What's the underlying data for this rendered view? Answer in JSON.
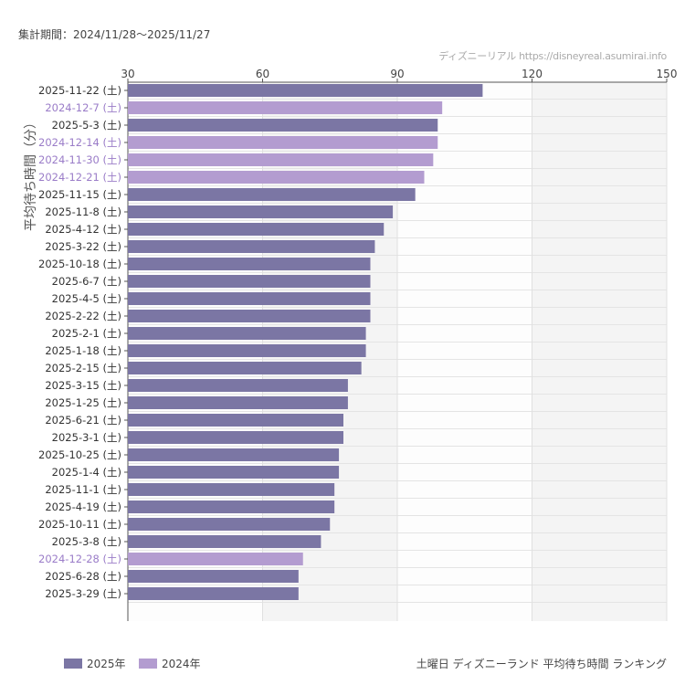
{
  "period_label": "集計期間：2024/11/28〜2025/11/27",
  "credit": "ディズニーリアル https://disneyreal.asumirai.info",
  "footer_title": "土曜日 ディズニーランド 平均待ち時間 ランキング",
  "chart_data": {
    "type": "bar",
    "orientation": "horizontal",
    "ylabel": "平均待ち時間（分）",
    "xlim": [
      30,
      150
    ],
    "xticks": [
      30,
      60,
      90,
      120,
      150
    ],
    "grid": true,
    "legend_position": "bottom-left",
    "colors": {
      "2025年": "#7b76a4",
      "2024年": "#b39cd0"
    },
    "label_colors": {
      "2025年": "#333333",
      "2024年": "#9a7cc8"
    },
    "legend": [
      "2025年",
      "2024年"
    ],
    "categories": [
      "2025-11-22 (土)",
      "2024-12-7 (土)",
      "2025-5-3 (土)",
      "2024-12-14 (土)",
      "2024-11-30 (土)",
      "2024-12-21 (土)",
      "2025-11-15 (土)",
      "2025-11-8 (土)",
      "2025-4-12 (土)",
      "2025-3-22 (土)",
      "2025-10-18 (土)",
      "2025-6-7 (土)",
      "2025-4-5 (土)",
      "2025-2-22 (土)",
      "2025-2-1 (土)",
      "2025-1-18 (土)",
      "2025-2-15 (土)",
      "2025-3-15 (土)",
      "2025-1-25 (土)",
      "2025-6-21 (土)",
      "2025-3-1 (土)",
      "2025-10-25 (土)",
      "2025-1-4 (土)",
      "2025-11-1 (土)",
      "2025-4-19 (土)",
      "2025-10-11 (土)",
      "2025-3-8 (土)",
      "2024-12-28 (土)",
      "2025-6-28 (土)",
      "2025-3-29 (土)"
    ],
    "values": [
      109,
      100,
      99,
      99,
      98,
      96,
      94,
      89,
      87,
      85,
      84,
      84,
      84,
      84,
      83,
      83,
      82,
      79,
      79,
      78,
      78,
      77,
      77,
      76,
      76,
      75,
      73,
      69,
      68,
      68
    ],
    "series_of": [
      "2025年",
      "2024年",
      "2025年",
      "2024年",
      "2024年",
      "2024年",
      "2025年",
      "2025年",
      "2025年",
      "2025年",
      "2025年",
      "2025年",
      "2025年",
      "2025年",
      "2025年",
      "2025年",
      "2025年",
      "2025年",
      "2025年",
      "2025年",
      "2025年",
      "2025年",
      "2025年",
      "2025年",
      "2025年",
      "2025年",
      "2025年",
      "2024年",
      "2025年",
      "2025年"
    ]
  }
}
